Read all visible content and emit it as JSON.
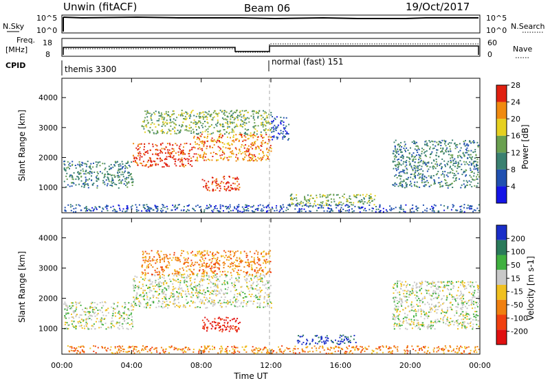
{
  "header": {
    "title": "Unwin (fitACF)",
    "beam": "Beam 06",
    "date": "19/Oct/2017"
  },
  "top_panels": {
    "nsky_label": "N.Sky",
    "nsky_ticks": [
      "10^5",
      "10^0"
    ],
    "nsearch_label": "N.Search",
    "freq_label": "Freq.",
    "freq_unit": "[MHz]",
    "freq_ticks": [
      "18",
      "8"
    ],
    "nave_label": "Nave",
    "nave_ticks": [
      "60",
      "0"
    ],
    "cpid_label": "CPID",
    "cpid_segments": [
      "themis 3300",
      "normal (fast) 151"
    ]
  },
  "colors": {
    "background": "#ffffff",
    "axis": "#000000",
    "divider": "#aaaaaa"
  },
  "chart_data": [
    {
      "type": "heatmap",
      "name": "power",
      "ylabel": "Slant Range [km]",
      "ylim": [
        200,
        4600
      ],
      "yticks": [
        "1000",
        "2000",
        "3000",
        "4000"
      ],
      "xlim": [
        0,
        24
      ],
      "colorbar": {
        "label": "Power [dB]",
        "ticks": [
          "4",
          "8",
          "12",
          "16",
          "20",
          "24",
          "28"
        ],
        "colors": [
          "#1414e6",
          "#2050b0",
          "#3a8070",
          "#6aa050",
          "#e6d020",
          "#f08a10",
          "#e02010"
        ]
      },
      "features": [
        {
          "t0": 0.0,
          "t1": 4.0,
          "r0": 1000,
          "r1": 1900,
          "level": 2
        },
        {
          "t0": 4.0,
          "t1": 7.5,
          "r0": 1700,
          "r1": 2500,
          "level": 6
        },
        {
          "t0": 7.5,
          "t1": 12.0,
          "r0": 1900,
          "r1": 2800,
          "level": 5
        },
        {
          "t0": 8.0,
          "t1": 10.2,
          "r0": 900,
          "r1": 1400,
          "level": 6
        },
        {
          "t0": 4.5,
          "t1": 12.0,
          "r0": 2800,
          "r1": 3600,
          "level": 3
        },
        {
          "t0": 12.0,
          "t1": 13.0,
          "r0": 2600,
          "r1": 3400,
          "level": 1
        },
        {
          "t0": 13.0,
          "t1": 18.0,
          "r0": 400,
          "r1": 800,
          "level": 3
        },
        {
          "t0": 19.0,
          "t1": 24.0,
          "r0": 1000,
          "r1": 2600,
          "level": 2
        },
        {
          "t0": 0.0,
          "t1": 24.0,
          "r0": 200,
          "r1": 450,
          "level": 1
        }
      ]
    },
    {
      "type": "heatmap",
      "name": "velocity",
      "ylabel": "Slant Range [km]",
      "ylim": [
        200,
        4600
      ],
      "yticks": [
        "1000",
        "2000",
        "3000",
        "4000"
      ],
      "xlabel": "Time UT",
      "xticks": [
        "00:00",
        "04:00",
        "08:00",
        "12:00",
        "16:00",
        "20:00",
        "00:00"
      ],
      "xlim": [
        0,
        24
      ],
      "colorbar": {
        "label": "Velocity [m s-1]",
        "ticks": [
          "200",
          "100",
          "50",
          "15",
          "-15",
          "-50",
          "-100",
          "-200"
        ],
        "colors": [
          "#1a2ec8",
          "#2a7a5a",
          "#40b040",
          "#c8c8c8",
          "#f0c020",
          "#f08010",
          "#f04010",
          "#e01010"
        ]
      },
      "features": [
        {
          "t0": 0.0,
          "t1": 4.0,
          "r0": 1000,
          "r1": 1900,
          "level": 3
        },
        {
          "t0": 4.0,
          "t1": 12.0,
          "r0": 1700,
          "r1": 2800,
          "level": 3
        },
        {
          "t0": 8.0,
          "t1": 10.2,
          "r0": 900,
          "r1": 1400,
          "level": 7
        },
        {
          "t0": 4.5,
          "t1": 12.0,
          "r0": 2800,
          "r1": 3600,
          "level": 5
        },
        {
          "t0": 13.5,
          "t1": 17.0,
          "r0": 500,
          "r1": 800,
          "level": 0
        },
        {
          "t0": 19.0,
          "t1": 24.0,
          "r0": 1000,
          "r1": 2600,
          "level": 3
        },
        {
          "t0": 0.0,
          "t1": 24.0,
          "r0": 200,
          "r1": 450,
          "level": 5
        }
      ]
    }
  ]
}
